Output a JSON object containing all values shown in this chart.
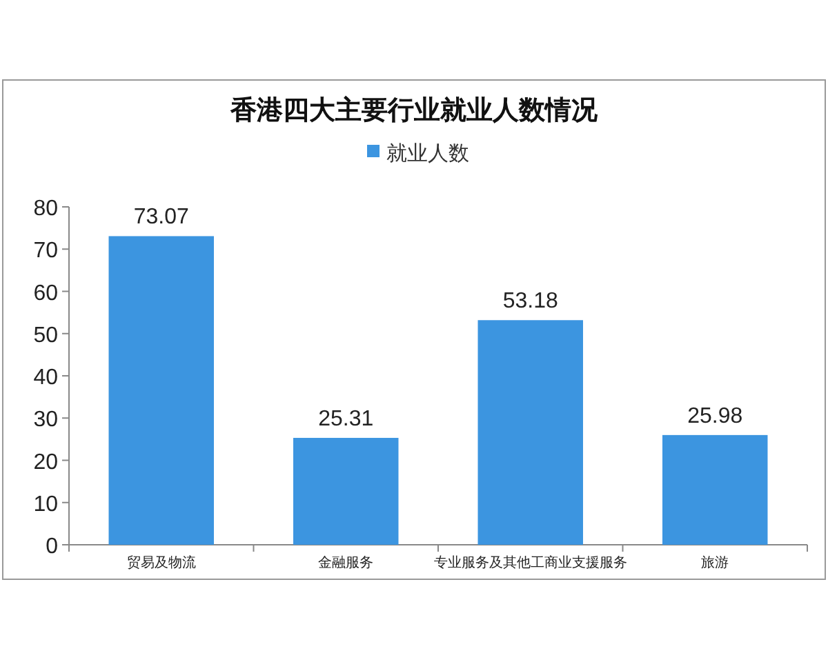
{
  "chart_data": {
    "type": "bar",
    "title": "香港四大主要行业就业人数情况",
    "categories": [
      "贸易及物流",
      "金融服务",
      "专业服务及其他工商业支援服务",
      "旅游"
    ],
    "series": [
      {
        "name": "就业人数",
        "color": "#3c95e0",
        "values": [
          73.07,
          25.31,
          53.18,
          25.98
        ]
      }
    ],
    "ylim": [
      0,
      80
    ],
    "yticks": [
      0,
      10,
      20,
      30,
      40,
      50,
      60,
      70,
      80
    ],
    "data_labels": true,
    "legend": "top",
    "grid": false
  }
}
